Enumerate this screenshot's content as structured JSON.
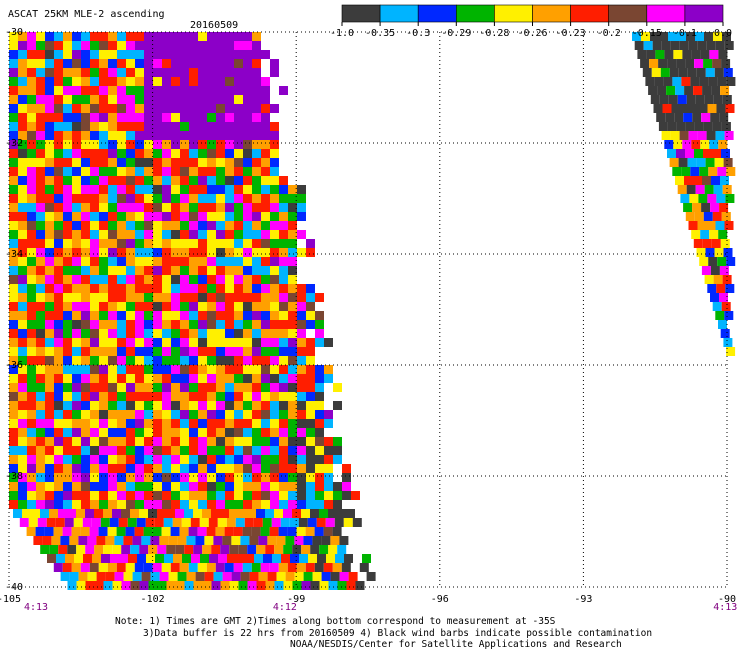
{
  "chart_data": {
    "type": "heatmap",
    "title": "ASCAT 25KM MLE-2 ascending",
    "date": "20160509",
    "xlim": [
      -105,
      -90
    ],
    "ylim": [
      -40,
      -30
    ],
    "x_ticks": [
      {
        "value": -105,
        "label": "-105"
      },
      {
        "value": -102,
        "label": "-102"
      },
      {
        "value": -99,
        "label": "-99"
      },
      {
        "value": -96,
        "label": "-96"
      },
      {
        "value": -93,
        "label": "-93"
      },
      {
        "value": -90,
        "label": "-90"
      }
    ],
    "y_ticks": [
      {
        "value": -30,
        "label": "-30"
      },
      {
        "value": -32,
        "label": "-32"
      },
      {
        "value": -34,
        "label": "-34"
      },
      {
        "value": -36,
        "label": "-36"
      },
      {
        "value": -38,
        "label": "-38"
      },
      {
        "value": -40,
        "label": "-40"
      }
    ],
    "grid": true,
    "time_labels": [
      {
        "x": -105,
        "label": "4:13"
      },
      {
        "x": -99.8,
        "label": "4:12"
      },
      {
        "x": -90.6,
        "label": "4:13"
      }
    ],
    "colorbar": {
      "ticks": [
        "-1.0",
        "-0.35",
        "-0.3",
        "-0.29",
        "-0.28",
        "-0.26",
        "-0.23",
        "-0.2",
        "-0.15",
        "-0.1",
        "0.0"
      ],
      "colors": [
        "#3c3c3c",
        "#00b4ff",
        "#0028ff",
        "#00b400",
        "#fff000",
        "#ffa000",
        "#ff1e00",
        "#7a4632",
        "#ff00ff",
        "#8c00c8"
      ]
    },
    "swaths": [
      {
        "name": "west",
        "lat_bins": 0.3,
        "lon_bins": 0.3,
        "color_index_range": [
          0,
          9
        ]
      },
      {
        "name": "east",
        "lat_bins": 0.3,
        "lon_bins": 0.3,
        "color_index_range": [
          0,
          9
        ]
      }
    ]
  },
  "notes": [
    "Note: 1) Times are GMT 2)Times along bottom correspond to measurement at -35S",
    "3)Data buffer is 22 hrs from 20160509 4) Black wind barbs indicate possible contamination",
    "NOAA/NESDIS/Center for Satellite Applications and Research"
  ],
  "colors": {
    "grid": "#000000",
    "time_label": "#800080"
  }
}
